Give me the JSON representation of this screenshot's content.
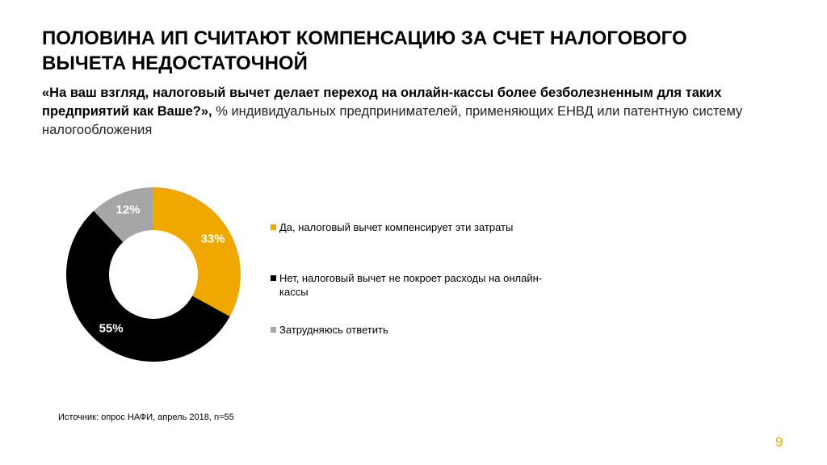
{
  "chart_data": {
    "type": "donut",
    "title": "ПОЛОВИНА ИП СЧИТАЮТ КОМПЕНСАЦИЮ ЗА СЧЕТ НАЛОГОВОГО ВЫЧЕТА НЕДОСТАТОЧНОЙ",
    "subtitle_question": "«На ваш взгляд, налоговый вычет делает переход на онлайн-кассы более безболезненным для таких предприятий как Ваше?»,",
    "subtitle": "% индивидуальных предпринимателей, применяющих ЕНВД или патентную систему налогообложения",
    "categories": [
      "Да, налоговый вычет компенсирует эти затраты",
      "Нет, налоговый вычет не покроет расходы на онлайн-кассы",
      "Затрудняюсь ответить"
    ],
    "values": [
      33,
      55,
      12
    ],
    "value_labels": [
      "33%",
      "55%",
      "12%"
    ],
    "colors": [
      "#f0a800",
      "#000000",
      "#a6a6a6"
    ],
    "source": "Источник: опрос НАФИ, апрель 2018, n=55",
    "page_number": "9"
  }
}
